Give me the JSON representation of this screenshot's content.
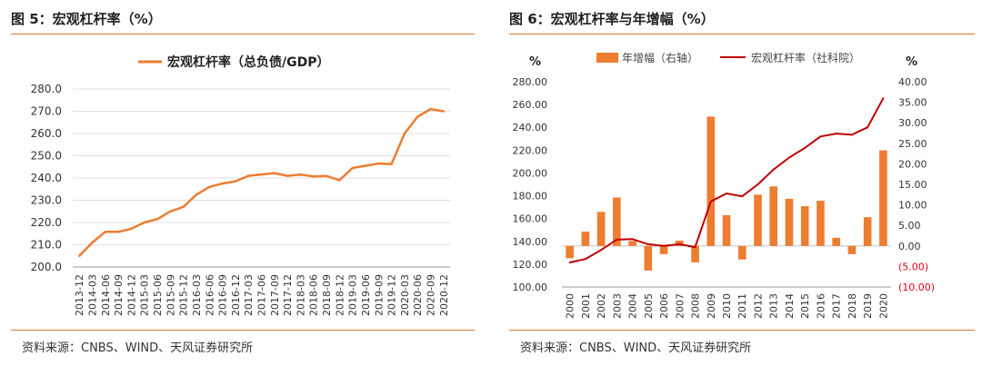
{
  "panels": [
    {
      "title": "图 5：宏观杠杆率（%）",
      "source": "资料来源：CNBS、WIND、天风证券研究所"
    },
    {
      "title": "图 6：宏观杠杆率与年增幅（%）",
      "source": "资料来源：CNBS、WIND、天风证券研究所"
    }
  ],
  "colors": {
    "accent": "#e07b2a",
    "bar": "#ed7d31",
    "line_red": "#c00000",
    "negative_tick": "#e0001b",
    "grid": "#e0e0e0"
  },
  "chart_data": [
    {
      "type": "line",
      "legend": "宏观杠杆率（总负债/GDP）",
      "legend_position": "top-center",
      "ylim": [
        200,
        280
      ],
      "yticks": [
        "200.0",
        "210.0",
        "220.0",
        "230.0",
        "240.0",
        "250.0",
        "260.0",
        "270.0",
        "280.0"
      ],
      "x": [
        "2013-12",
        "2014-03",
        "2014-06",
        "2014-09",
        "2014-12",
        "2015-03",
        "2015-06",
        "2015-09",
        "2015-12",
        "2016-03",
        "2016-06",
        "2016-09",
        "2016-12",
        "2017-03",
        "2017-06",
        "2017-09",
        "2017-12",
        "2018-03",
        "2018-06",
        "2018-09",
        "2018-12",
        "2019-03",
        "2019-06",
        "2019-09",
        "2019-12",
        "2020-03",
        "2020-06",
        "2020-09",
        "2020-12"
      ],
      "values": [
        205.0,
        211.0,
        215.8,
        215.8,
        217.2,
        220.0,
        221.5,
        225.0,
        227.0,
        232.5,
        236.0,
        237.5,
        238.5,
        241.0,
        241.6,
        242.2,
        241.0,
        241.5,
        240.7,
        240.9,
        239.0,
        244.5,
        245.5,
        246.5,
        246.3,
        260.0,
        267.5,
        271.0,
        270.0
      ],
      "grid": true
    },
    {
      "type": "bar+line",
      "legend_position": "top",
      "left_axis_unit": "%",
      "right_axis_unit": "%",
      "ylim_left": [
        100,
        280
      ],
      "ylim_right": [
        -10,
        40
      ],
      "yticks_left": [
        "100.00",
        "120.00",
        "140.00",
        "160.00",
        "180.00",
        "200.00",
        "220.00",
        "240.00",
        "260.00",
        "280.00"
      ],
      "yticks_right": [
        "(10.00)",
        "(5.00)",
        "0.00",
        "5.00",
        "10.00",
        "15.00",
        "20.00",
        "25.00",
        "30.00",
        "35.00",
        "40.00"
      ],
      "x": [
        "2000",
        "2001",
        "2002",
        "2003",
        "2004",
        "2005",
        "2006",
        "2007",
        "2008",
        "2009",
        "2010",
        "2011",
        "2012",
        "2013",
        "2014",
        "2015",
        "2016",
        "2017",
        "2018",
        "2019",
        "2020"
      ],
      "series": [
        {
          "name": "年增幅（右轴）",
          "type": "bar",
          "axis": "right",
          "values": [
            -3.0,
            3.5,
            8.3,
            11.8,
            1.2,
            -6.0,
            -2.0,
            1.3,
            -4.0,
            31.5,
            7.5,
            -3.3,
            12.5,
            14.5,
            11.5,
            9.7,
            11.0,
            2.0,
            -2.0,
            7.0,
            23.3
          ]
        },
        {
          "name": "宏观杠杆率（社科院）",
          "type": "line",
          "axis": "left",
          "values": [
            121.5,
            124.5,
            132.5,
            141.5,
            142.0,
            137.5,
            136.0,
            137.5,
            135.0,
            175.0,
            182.0,
            179.5,
            190.0,
            203.0,
            213.5,
            222.0,
            232.0,
            234.5,
            233.5,
            240.0,
            265.5
          ]
        }
      ]
    }
  ]
}
